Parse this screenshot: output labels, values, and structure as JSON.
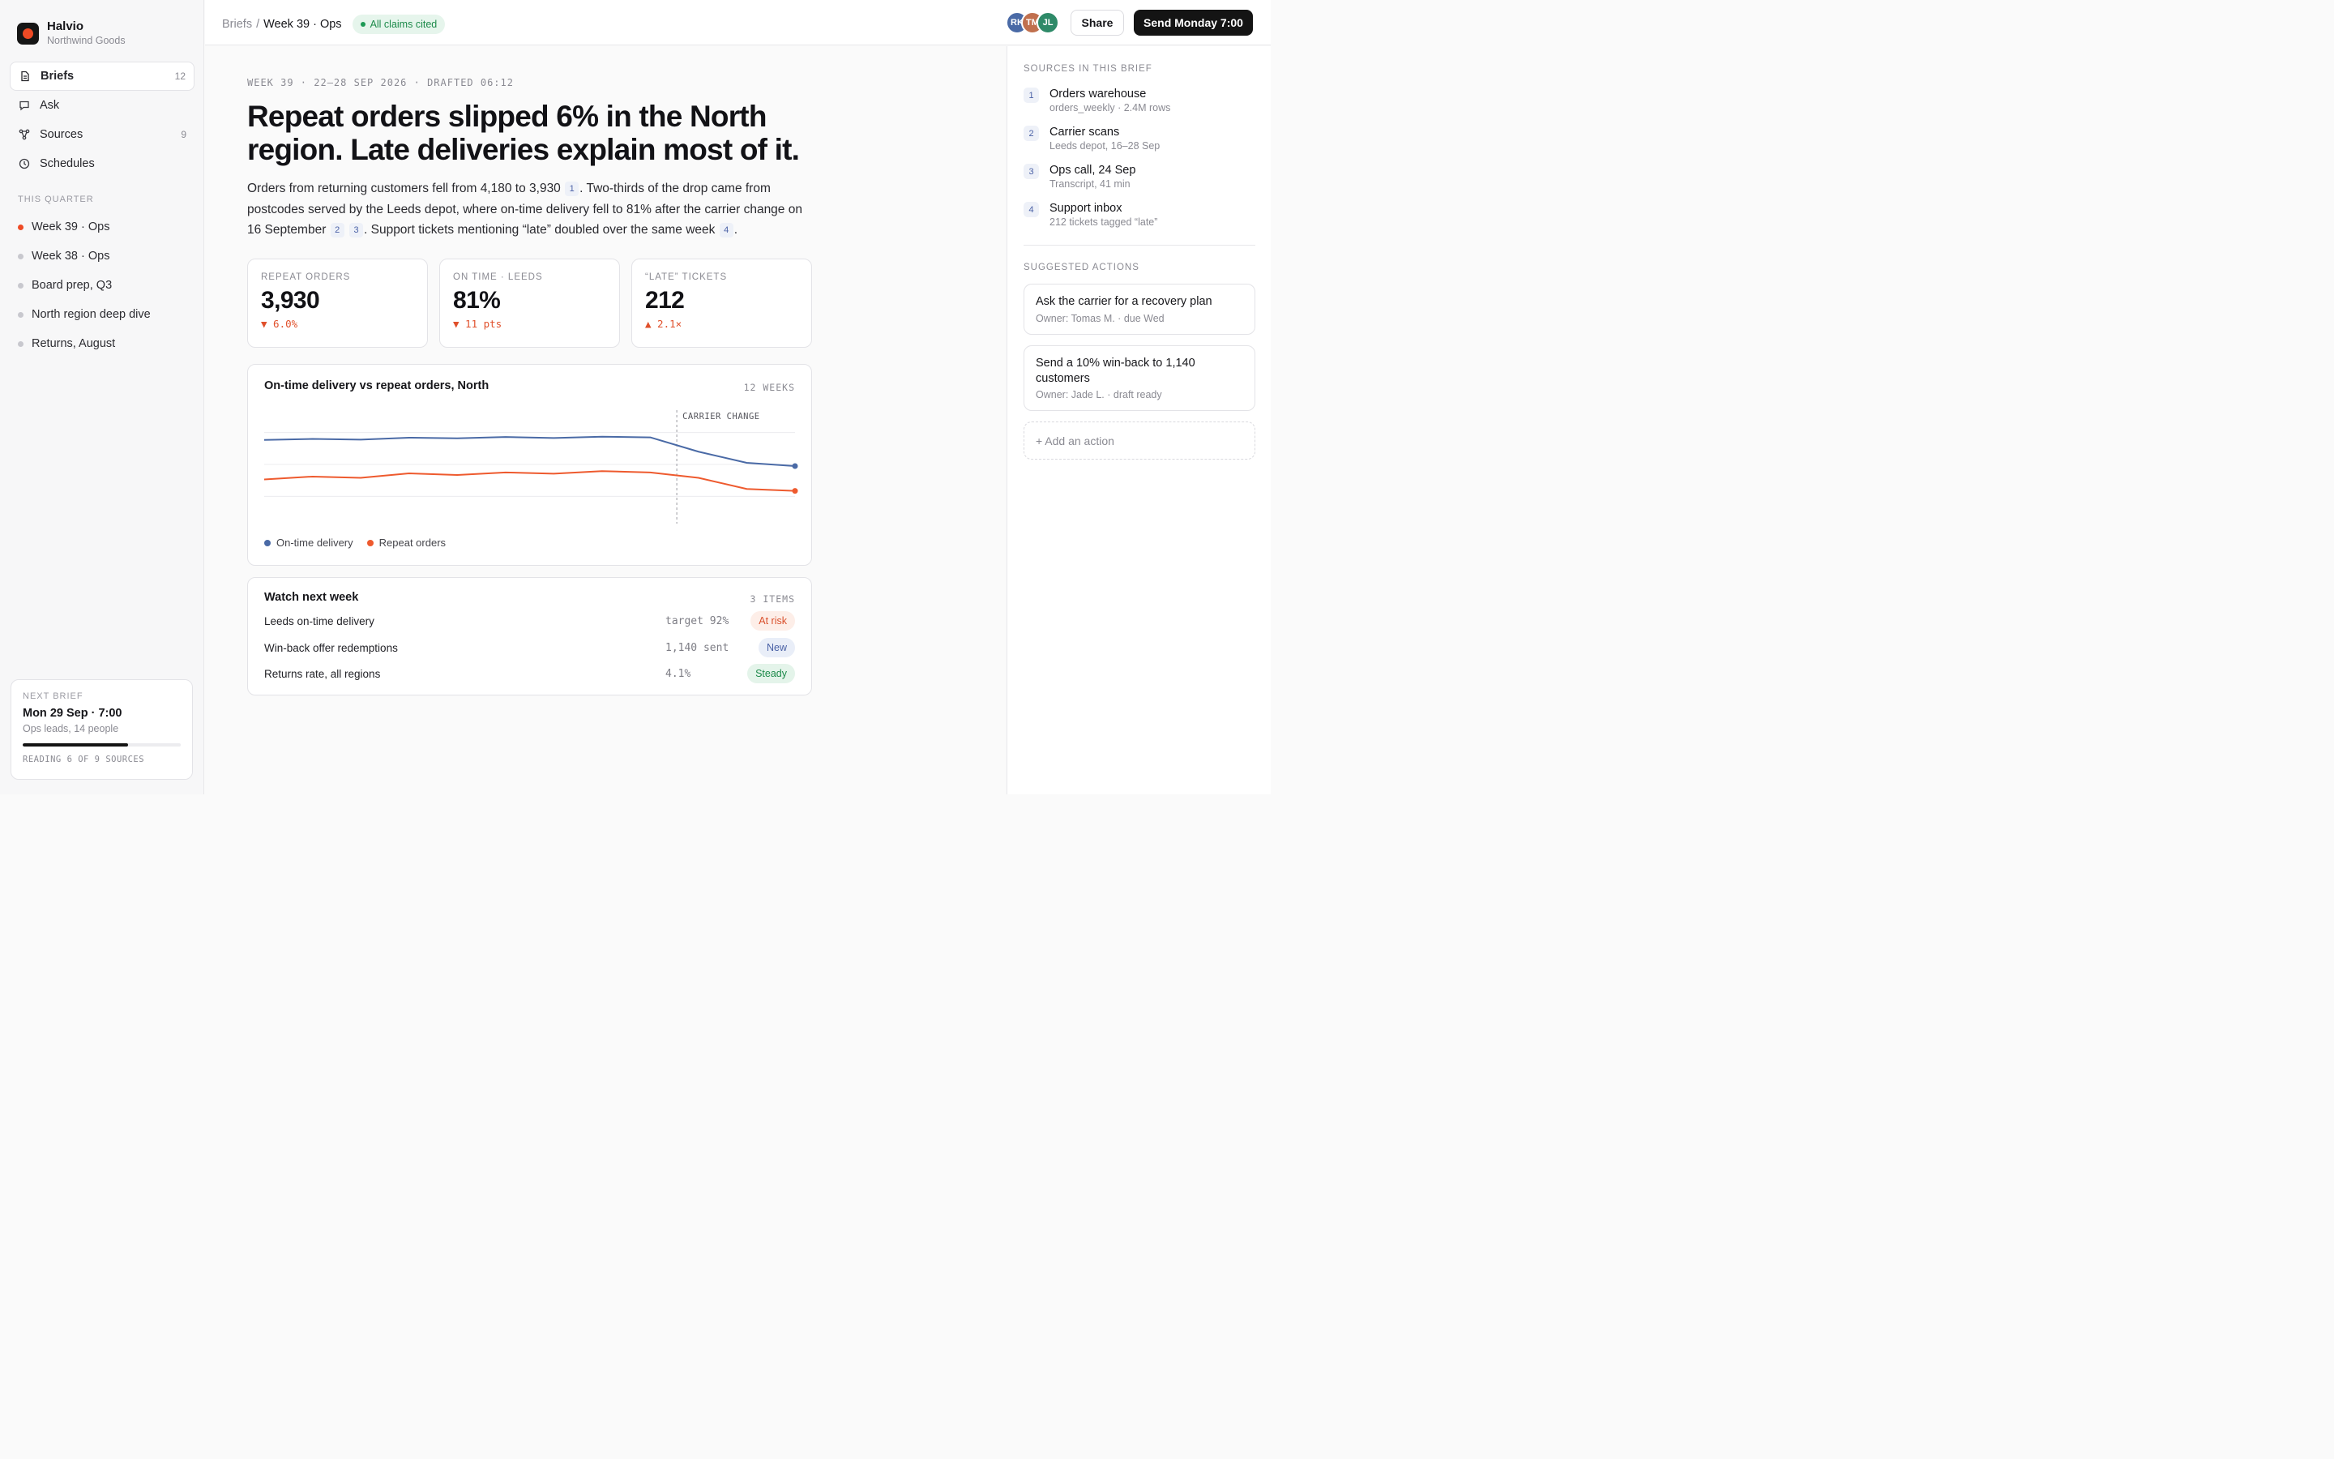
{
  "app": {
    "name": "Halvio",
    "org": "Northwind Goods"
  },
  "nav": [
    {
      "label": "Briefs",
      "count": "12",
      "icon": "document-icon",
      "active": true
    },
    {
      "label": "Ask",
      "count": "",
      "icon": "chat-icon",
      "active": false
    },
    {
      "label": "Sources",
      "count": "9",
      "icon": "sources-icon",
      "active": false
    },
    {
      "label": "Schedules",
      "count": "",
      "icon": "clock-icon",
      "active": false
    }
  ],
  "quarter": {
    "label": "THIS QUARTER",
    "items": [
      {
        "label": "Week 39 · Ops",
        "live": true
      },
      {
        "label": "Week 38 · Ops",
        "live": false
      },
      {
        "label": "Board prep, Q3",
        "live": false
      },
      {
        "label": "North region deep dive",
        "live": false
      },
      {
        "label": "Returns, August",
        "live": false
      }
    ]
  },
  "next_brief": {
    "label": "NEXT BRIEF",
    "when": "Mon 29 Sep · 7:00",
    "audience": "Ops leads, 14 people",
    "progress": 0.667,
    "status": "READING 6 OF 9 SOURCES"
  },
  "topbar": {
    "crumb_root": "Briefs",
    "crumb_sep": "/",
    "crumb_current": "Week 39 · Ops",
    "badge": "All claims cited",
    "avatars": [
      {
        "initials": "RK",
        "color": "#4a6aa6"
      },
      {
        "initials": "TM",
        "color": "#c0704e"
      },
      {
        "initials": "JL",
        "color": "#2e8a68"
      }
    ],
    "share_label": "Share",
    "send_label": "Send Monday 7:00"
  },
  "brief": {
    "meta": "WEEK 39 · 22–28 SEP 2026 · DRAFTED 06:12",
    "headline": "Repeat orders slipped 6% in the North region. Late deliveries explain most of it.",
    "lede": {
      "p1": "Orders from returning customers fell from 4,180 to 3,930",
      "c1": "1",
      "p2": ". Two-thirds of the drop came from postcodes served by the Leeds depot, where on-time delivery fell to 81% after the carrier change on 16 September",
      "c2": "2",
      "c3": "3",
      "p3": ". Support tickets mentioning “late” doubled over the same week",
      "c4": "4",
      "p4": "."
    },
    "kpis": [
      {
        "label": "REPEAT ORDERS",
        "value": "3,930",
        "delta": "▼ 6.0%"
      },
      {
        "label": "ON TIME · LEEDS",
        "value": "81%",
        "delta": "▼ 11 pts"
      },
      {
        "label": "“LATE” TICKETS",
        "value": "212",
        "delta": "▲ 2.1×"
      }
    ],
    "chart": {
      "title": "On-time delivery vs repeat orders, North",
      "range": "12 WEEKS",
      "annotation": "CARRIER CHANGE",
      "colors": {
        "ontime": "#4a6aa6",
        "repeat": "#ee5a2e"
      }
    },
    "watch": {
      "title": "Watch next week",
      "count": "3 ITEMS",
      "rows": [
        {
          "label": "Leeds on-time delivery",
          "value": "target 92%",
          "status": "At risk"
        },
        {
          "label": "Win-back offer redemptions",
          "value": "1,140 sent",
          "status": "New"
        },
        {
          "label": "Returns rate, all regions",
          "value": "4.1%",
          "status": "Steady"
        }
      ]
    }
  },
  "chart_data": {
    "type": "line",
    "title": "On-time delivery vs repeat orders, North",
    "x": [
      1,
      2,
      3,
      4,
      5,
      6,
      7,
      8,
      9,
      10,
      11,
      12
    ],
    "series": [
      {
        "name": "On-time delivery",
        "values": [
          0.77,
          0.8,
          0.78,
          0.84,
          0.82,
          0.86,
          0.83,
          0.87,
          0.85,
          0.4,
          0.05,
          -0.05
        ]
      },
      {
        "name": "Repeat orders",
        "values": [
          -0.47,
          -0.38,
          -0.42,
          -0.28,
          -0.33,
          -0.25,
          -0.29,
          -0.21,
          -0.25,
          -0.42,
          -0.77,
          -0.83
        ]
      }
    ],
    "annotation": {
      "label": "CARRIER CHANGE",
      "x": 9.55
    },
    "ylim": [
      -1.5,
      1.5
    ],
    "grid": true,
    "legend": "bottom-left",
    "range_label": "12 WEEKS"
  },
  "right_panel": {
    "sources_label": "SOURCES IN THIS BRIEF",
    "sources": [
      {
        "num": "1",
        "name": "Orders warehouse",
        "sub": "orders_weekly · 2.4M rows"
      },
      {
        "num": "2",
        "name": "Carrier scans",
        "sub": "Leeds depot, 16–28 Sep"
      },
      {
        "num": "3",
        "name": "Ops call, 24 Sep",
        "sub": "Transcript, 41 min"
      },
      {
        "num": "4",
        "name": "Support inbox",
        "sub": "212 tickets tagged “late”"
      }
    ],
    "actions_label": "SUGGESTED ACTIONS",
    "actions": [
      {
        "title": "Ask the carrier for a recovery plan",
        "owner": "Owner: Tomas M. · due Wed"
      },
      {
        "title": "Send a 10% win-back to 1,140 customers",
        "owner": "Owner: Jade L. · draft ready"
      }
    ],
    "add_action": "+ Add an action"
  }
}
